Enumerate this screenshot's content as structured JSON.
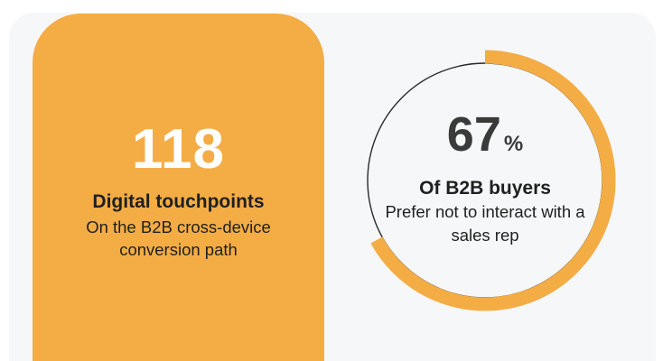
{
  "touchpoints_card": {
    "number": "118",
    "title": "Digital touchpoints",
    "description": "On the B2B cross-device conversion path",
    "color": "#f4ad45"
  },
  "buyers_stat": {
    "number": "67",
    "unit": "%",
    "title": "Of B2B buyers",
    "description": "Prefer not to interact with a sales rep",
    "percent": 67,
    "ring_color": "#f4ad45",
    "circle_color": "#2a2a2a"
  },
  "colors": {
    "accent": "#f4ad45",
    "background": "#f6f7f8",
    "text": "#1f1f1f"
  }
}
